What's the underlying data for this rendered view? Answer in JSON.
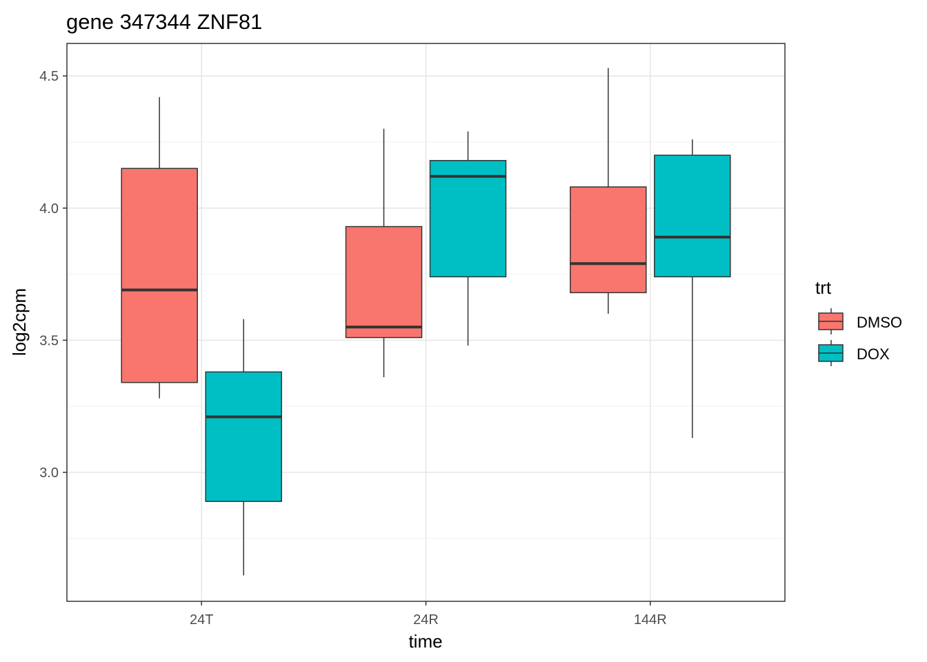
{
  "chart_data": {
    "type": "boxplot",
    "title": "gene 347344 ZNF81",
    "xlabel": "time",
    "ylabel": "log2cpm",
    "categories": [
      "24T",
      "24R",
      "144R"
    ],
    "ylim": [
      2.512,
      4.623
    ],
    "yticks": [
      3.0,
      3.5,
      4.0,
      4.5
    ],
    "ytick_labels": [
      "3.0",
      "3.5",
      "4.0",
      "4.5"
    ],
    "grid": true,
    "legend": {
      "title": "trt",
      "position": "right",
      "entries": [
        "DMSO",
        "DOX"
      ]
    },
    "series": [
      {
        "name": "DMSO",
        "color": "#F8766D",
        "boxes": [
          {
            "min": 3.28,
            "q1": 3.34,
            "median": 3.69,
            "q3": 4.15,
            "max": 4.42
          },
          {
            "min": 3.36,
            "q1": 3.51,
            "median": 3.55,
            "q3": 3.93,
            "max": 4.3
          },
          {
            "min": 3.6,
            "q1": 3.68,
            "median": 3.79,
            "q3": 4.08,
            "max": 4.53
          }
        ]
      },
      {
        "name": "DOX",
        "color": "#00BFC4",
        "boxes": [
          {
            "min": 2.61,
            "q1": 2.89,
            "median": 3.21,
            "q3": 3.38,
            "max": 3.58
          },
          {
            "min": 3.48,
            "q1": 3.74,
            "median": 4.12,
            "q3": 4.18,
            "max": 4.29
          },
          {
            "min": 3.13,
            "q1": 3.74,
            "median": 3.89,
            "q3": 4.2,
            "max": 4.26
          }
        ]
      }
    ]
  }
}
